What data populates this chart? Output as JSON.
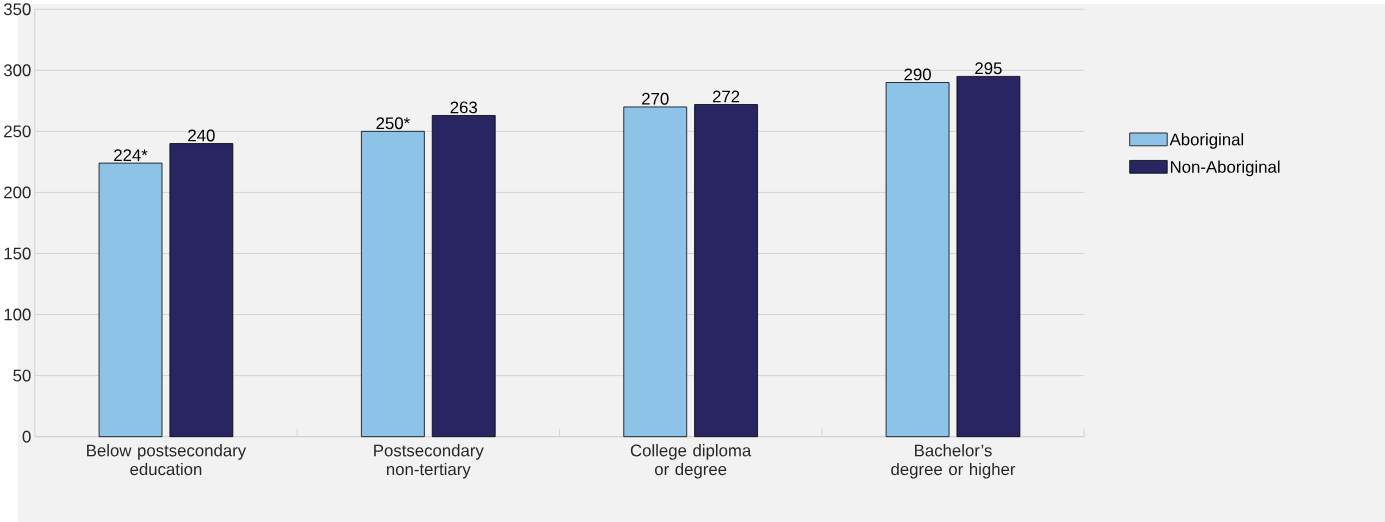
{
  "chart_data": {
    "type": "bar",
    "categories": [
      "Below postsecondary education",
      "Postsecondary non-tertiary",
      "College diploma or degree",
      "Bachelor’s degree or higher"
    ],
    "series": [
      {
        "name": "Aboriginal",
        "color": "#8dc3e6",
        "values": [
          224,
          250,
          270,
          290
        ],
        "value_labels": [
          "224*",
          "250*",
          "270",
          "290"
        ]
      },
      {
        "name": "Non-Aboriginal",
        "color": "#282562",
        "values": [
          240,
          263,
          272,
          295
        ],
        "value_labels": [
          "240",
          "263",
          "272",
          "295"
        ]
      }
    ],
    "ylim": [
      0,
      350
    ],
    "yticks": [
      0,
      50,
      100,
      150,
      200,
      250,
      300,
      350
    ],
    "grid": "y",
    "legend": "right"
  }
}
